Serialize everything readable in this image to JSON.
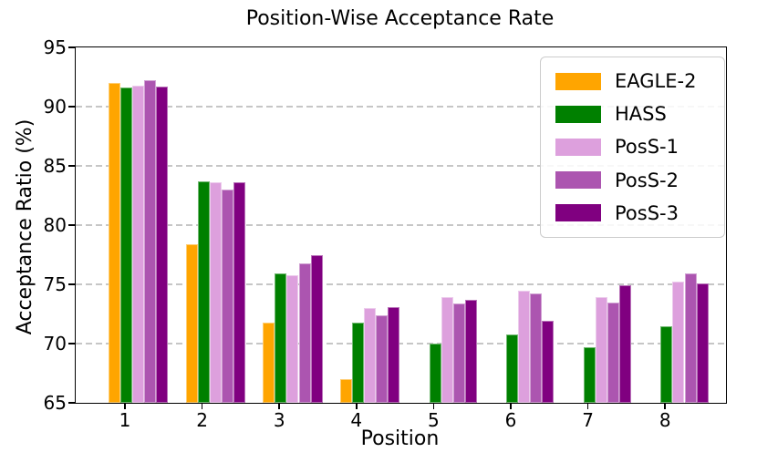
{
  "figure": {
    "background": "#ffffff"
  },
  "chart_data": {
    "type": "bar",
    "title": "Position-Wise Acceptance Rate",
    "xlabel": "Position",
    "ylabel": "Acceptance Ratio (%)",
    "ylim": [
      65,
      95
    ],
    "yticks": [
      65,
      70,
      75,
      80,
      85,
      90,
      95
    ],
    "categories": [
      "1",
      "2",
      "3",
      "4",
      "5",
      "6",
      "7",
      "8"
    ],
    "grid": "horizontal-dashed",
    "grid_color": "#c6c6c6",
    "legend_position": "upper-right",
    "series": [
      {
        "name": "EAGLE-2",
        "color": "#FFA500",
        "values": [
          92.0,
          78.4,
          71.8,
          67.0,
          null,
          null,
          null,
          null
        ]
      },
      {
        "name": "HASS",
        "color": "#008000",
        "values": [
          91.6,
          83.7,
          75.9,
          71.8,
          70.0,
          70.8,
          69.7,
          71.5
        ]
      },
      {
        "name": "PosS-1",
        "color": "#DDA0DD",
        "values": [
          91.8,
          83.6,
          75.8,
          73.0,
          73.9,
          74.5,
          73.9,
          75.2
        ]
      },
      {
        "name": "PosS-2",
        "color": "#AC55B0",
        "values": [
          92.2,
          83.0,
          76.8,
          72.4,
          73.4,
          74.2,
          73.5,
          75.9
        ]
      },
      {
        "name": "PosS-3",
        "color": "#800080",
        "values": [
          91.7,
          83.6,
          77.5,
          73.1,
          73.7,
          71.9,
          74.9,
          75.1
        ]
      }
    ]
  }
}
